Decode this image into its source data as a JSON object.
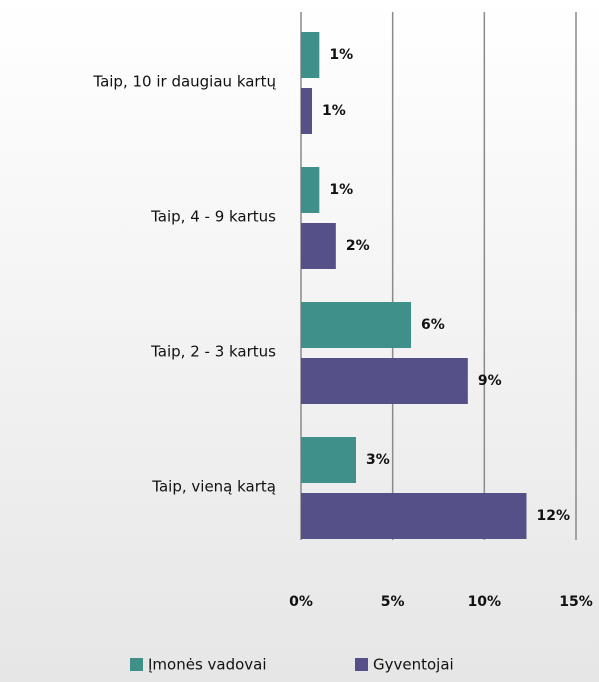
{
  "chart_data": {
    "type": "hbar",
    "categories": [
      "Taip, 10 ir daugiau kartų",
      "Taip, 4 - 9 kartus",
      "Taip, 2 - 3 kartus",
      "Taip, vieną kartą"
    ],
    "series": [
      {
        "name": "Įmonės vadovai",
        "color": "#3f8f8a",
        "values": [
          1,
          1,
          6,
          3
        ],
        "value_labels": [
          "1%",
          "1%",
          "6%",
          "3%"
        ]
      },
      {
        "name": "Gyventojai",
        "color": "#555088",
        "values": [
          0.6,
          1.9,
          9.1,
          12.3
        ],
        "value_labels": [
          "1%",
          "2%",
          "9%",
          "12%"
        ]
      }
    ],
    "xlim": [
      0,
      15
    ],
    "xticks": [
      {
        "value": 0,
        "label": "0%"
      },
      {
        "value": 5,
        "label": "5%"
      },
      {
        "value": 10,
        "label": "10%"
      },
      {
        "value": 15,
        "label": "15%"
      }
    ],
    "grid": true,
    "legend": "bottom"
  }
}
